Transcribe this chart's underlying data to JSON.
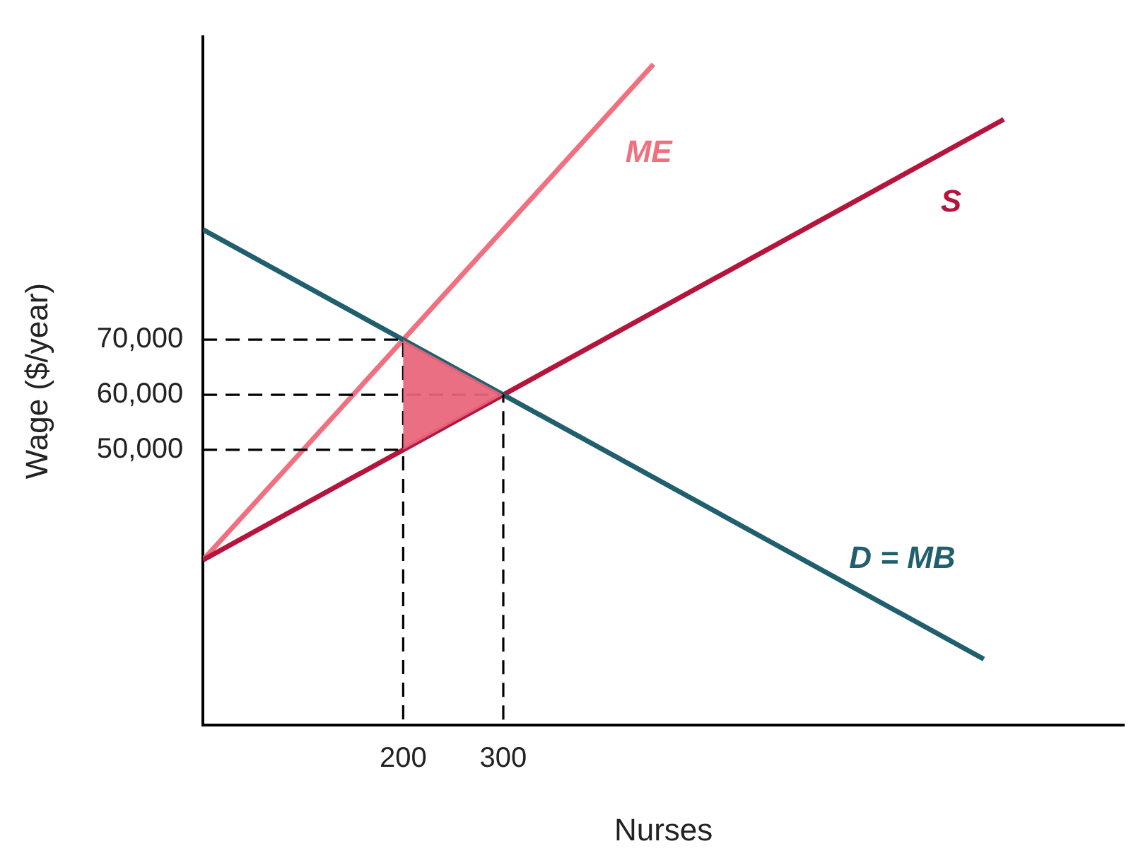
{
  "chart_data": {
    "type": "line",
    "xlabel": "Nurses",
    "ylabel": "Wage ($/year)",
    "xlim": [
      0,
      920
    ],
    "ylim": [
      0,
      125000
    ],
    "xticks": [
      200,
      300
    ],
    "yticks": [
      {
        "value": 50000,
        "label": "50,000"
      },
      {
        "value": 60000,
        "label": "60,000"
      },
      {
        "value": 70000,
        "label": "70,000"
      }
    ],
    "grid": false,
    "legend": false,
    "marker": "none",
    "series": [
      {
        "type": "area",
        "color": "#e8657a",
        "x": [
          200,
          200,
          300,
          200
        ],
        "values": [
          50000,
          70000,
          60000,
          50000
        ]
      },
      {
        "color": "#000000",
        "line_style": "dashed",
        "x": [
          0,
          200,
          200
        ],
        "values": [
          70000,
          70000,
          0
        ]
      },
      {
        "color": "#000000",
        "line_style": "dashed",
        "x": [
          0,
          300,
          300
        ],
        "values": [
          60000,
          60000,
          0
        ]
      },
      {
        "color": "#000000",
        "line_style": "dashed",
        "x": [
          0,
          200
        ],
        "values": [
          50000,
          50000
        ]
      },
      {
        "name": "D = MB",
        "color": "#1f5f6e",
        "x": [
          0,
          780
        ],
        "values": [
          90000,
          12000
        ]
      },
      {
        "name": "S",
        "color": "#b5143c",
        "x": [
          0,
          800
        ],
        "values": [
          30000,
          110000
        ]
      },
      {
        "name": "ME",
        "color": "#f07080",
        "x": [
          0,
          450
        ],
        "values": [
          30000,
          120000
        ]
      }
    ]
  }
}
